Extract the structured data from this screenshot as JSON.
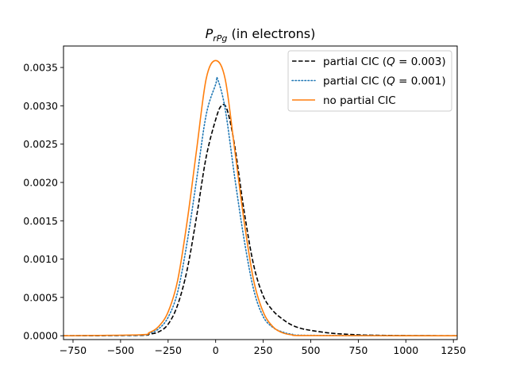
{
  "chart_data": {
    "type": "line",
    "title": {
      "symbol": "P",
      "subscript": "rPg",
      "suffix": " (in electrons)"
    },
    "xlabel": "",
    "ylabel": "",
    "xlim": [
      -800,
      1270
    ],
    "ylim": [
      -5e-05,
      0.00378
    ],
    "x_ticks": [
      -750,
      -500,
      -250,
      0,
      250,
      500,
      750,
      1000,
      1250
    ],
    "x_tick_labels": [
      "−750",
      "−500",
      "−250",
      "0",
      "250",
      "500",
      "750",
      "1000",
      "1250"
    ],
    "y_ticks": [
      0.0,
      0.0005,
      0.001,
      0.0015,
      0.002,
      0.0025,
      0.003,
      0.0035
    ],
    "y_tick_labels": [
      "0.0000",
      "0.0005",
      "0.0010",
      "0.0015",
      "0.0020",
      "0.0025",
      "0.0030",
      "0.0035"
    ],
    "grid": false,
    "legend_position": "top-right",
    "series": [
      {
        "name": "partial CIC (Q = 0.003)",
        "legend": {
          "prefix": "partial CIC (",
          "var": "Q",
          "rest": " = 0.003)"
        },
        "color": "#000000",
        "dash": "dashed",
        "points": [
          [
            -800,
            0.0
          ],
          [
            -400,
            5e-06
          ],
          [
            -350,
            2e-05
          ],
          [
            -300,
            5e-05
          ],
          [
            -250,
            0.00015
          ],
          [
            -200,
            0.0004
          ],
          [
            -150,
            0.00086
          ],
          [
            -100,
            0.00156
          ],
          [
            -50,
            0.00233
          ],
          [
            0,
            0.00282
          ],
          [
            30,
            0.003
          ],
          [
            60,
            0.00295
          ],
          [
            100,
            0.00248
          ],
          [
            150,
            0.00162
          ],
          [
            200,
            0.00092
          ],
          [
            250,
            0.00052
          ],
          [
            300,
            0.00033
          ],
          [
            350,
            0.00022
          ],
          [
            400,
            0.00014
          ],
          [
            450,
            9.5e-05
          ],
          [
            500,
            7e-05
          ],
          [
            600,
            3.5e-05
          ],
          [
            700,
            1.8e-05
          ],
          [
            800,
            8e-06
          ],
          [
            1000,
            2e-06
          ],
          [
            1270,
            0.0
          ]
        ]
      },
      {
        "name": "partial CIC (Q = 0.001)",
        "legend": {
          "prefix": "partial CIC (",
          "var": "Q",
          "rest": " = 0.001)"
        },
        "color": "#1f77b4",
        "dash": "dotted",
        "points": [
          [
            -800,
            0.0
          ],
          [
            -400,
            8e-06
          ],
          [
            -350,
            3e-05
          ],
          [
            -300,
            9e-05
          ],
          [
            -250,
            0.00024
          ],
          [
            -200,
            0.00057
          ],
          [
            -150,
            0.00122
          ],
          [
            -100,
            0.00204
          ],
          [
            -50,
            0.00288
          ],
          [
            0,
            0.00328
          ],
          [
            10,
            0.00335
          ],
          [
            50,
            0.00296
          ],
          [
            100,
            0.00207
          ],
          [
            150,
            0.00125
          ],
          [
            200,
            0.0006
          ],
          [
            250,
            0.00025
          ],
          [
            300,
            0.00011
          ],
          [
            350,
            5e-05
          ],
          [
            400,
            2e-05
          ],
          [
            500,
            5e-06
          ],
          [
            1270,
            0.0
          ]
        ]
      },
      {
        "name": "no partial CIC",
        "legend": {
          "prefix": "no partial CIC",
          "var": "",
          "rest": ""
        },
        "color": "#ff7f0e",
        "dash": "solid",
        "points": [
          [
            -800,
            0.0
          ],
          [
            -400,
            1.2e-05
          ],
          [
            -350,
            4e-05
          ],
          [
            -300,
            0.00012
          ],
          [
            -250,
            0.00031
          ],
          [
            -200,
            0.00072
          ],
          [
            -150,
            0.00149
          ],
          [
            -100,
            0.00243
          ],
          [
            -50,
            0.00335
          ],
          [
            0,
            0.00359
          ],
          [
            50,
            0.00335
          ],
          [
            100,
            0.00243
          ],
          [
            150,
            0.00149
          ],
          [
            200,
            0.00072
          ],
          [
            250,
            0.00031
          ],
          [
            300,
            0.00012
          ],
          [
            350,
            4e-05
          ],
          [
            400,
            1.2e-05
          ],
          [
            500,
            2e-06
          ],
          [
            1270,
            0.0
          ]
        ]
      }
    ]
  }
}
